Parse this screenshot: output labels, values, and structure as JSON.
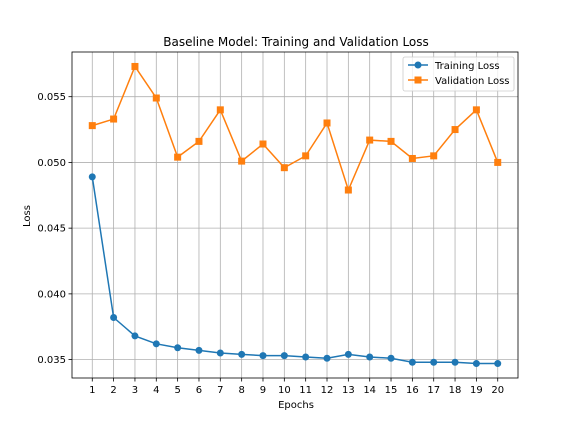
{
  "chart_data": {
    "type": "line",
    "title": "Baseline Model: Training and Validation Loss",
    "xlabel": "Epochs",
    "ylabel": "Loss",
    "x": [
      1,
      2,
      3,
      4,
      5,
      6,
      7,
      8,
      9,
      10,
      11,
      12,
      13,
      14,
      15,
      16,
      17,
      18,
      19,
      20
    ],
    "xticks": [
      "1",
      "2",
      "3",
      "4",
      "5",
      "6",
      "7",
      "8",
      "9",
      "10",
      "11",
      "12",
      "13",
      "14",
      "15",
      "16",
      "17",
      "18",
      "19",
      "20"
    ],
    "xlim": [
      0.05,
      20.95
    ],
    "ylim": [
      0.0336,
      0.0584
    ],
    "yticks": [
      0.035,
      0.04,
      0.045,
      0.05,
      0.055
    ],
    "ytick_labels": [
      "0.035",
      "0.040",
      "0.045",
      "0.050",
      "0.055"
    ],
    "grid": true,
    "legend_position": "top-right",
    "series": [
      {
        "name": "Training Loss",
        "color": "#1f77b4",
        "marker": "circle",
        "values": [
          0.0489,
          0.0382,
          0.0368,
          0.0362,
          0.0359,
          0.0357,
          0.0355,
          0.0354,
          0.0353,
          0.0353,
          0.0352,
          0.0351,
          0.0354,
          0.0352,
          0.0351,
          0.0348,
          0.0348,
          0.0348,
          0.0347,
          0.0347
        ]
      },
      {
        "name": "Validation Loss",
        "color": "#ff7f0e",
        "marker": "square",
        "values": [
          0.0528,
          0.0533,
          0.0573,
          0.0549,
          0.0504,
          0.0516,
          0.054,
          0.0501,
          0.0514,
          0.0496,
          0.0505,
          0.053,
          0.0479,
          0.0517,
          0.0516,
          0.0503,
          0.0505,
          0.0525,
          0.054,
          0.05
        ]
      }
    ]
  }
}
